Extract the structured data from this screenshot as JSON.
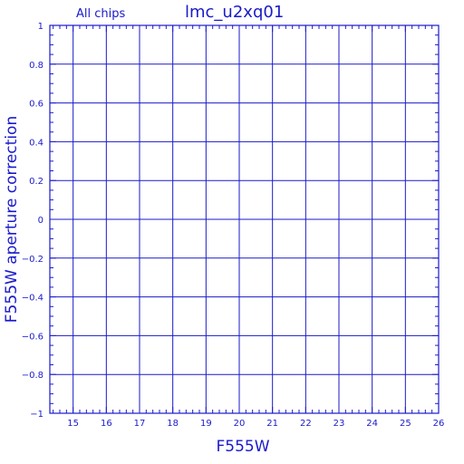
{
  "chart_data": {
    "type": "scatter",
    "title": "lmc_u2xq01",
    "subtitle": "All chips",
    "xlabel": "F555W",
    "ylabel": "F555W aperture correction",
    "xlim": [
      14.3,
      26
    ],
    "ylim": [
      -1,
      1
    ],
    "xticks": [
      15,
      16,
      17,
      18,
      19,
      20,
      21,
      22,
      23,
      24,
      25,
      26
    ],
    "yticks": [
      -1,
      -0.8,
      -0.6,
      -0.4,
      -0.2,
      0,
      0.2,
      0.4,
      0.6,
      0.8,
      1
    ],
    "ytick_labels": [
      "−1",
      "−0.8",
      "−0.6",
      "−0.4",
      "−0.2",
      "0",
      "0.2",
      "0.4",
      "0.6",
      "0.8",
      "1"
    ],
    "grid": true,
    "points": [],
    "color": "#1a1acc"
  }
}
